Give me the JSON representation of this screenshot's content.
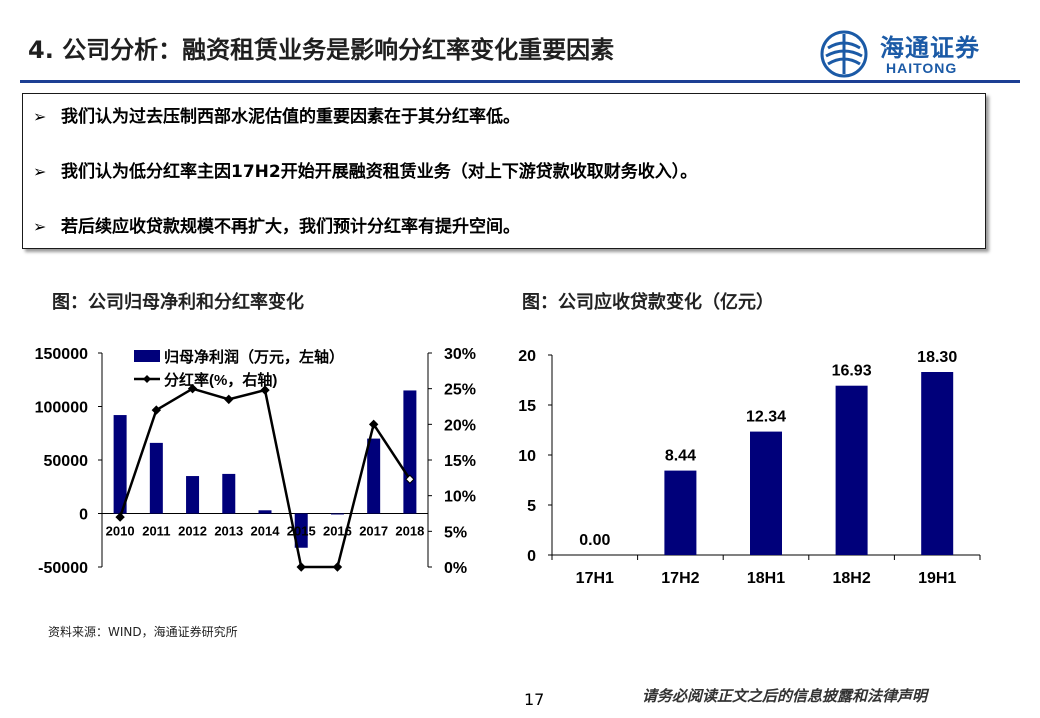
{
  "header": {
    "title": "4. 公司分析：融资租赁业务是影响分红率变化重要因素",
    "logo_cn": "海通证券",
    "logo_en": "HAITONG"
  },
  "bullets": [
    "我们认为过去压制西部水泥估值的重要因素在于其分红率低。",
    "我们认为低分红率主因17H2开始开展融资租赁业务（对上下游贷款收取财务收入）。",
    "若后续应收贷款规模不再扩大，我们预计分红率有提升空间。"
  ],
  "bullet_marker": "➢",
  "chart_left_title": "图：公司归母净利和分红率变化",
  "chart_right_title": "图：公司应收贷款变化（亿元）",
  "source": "资料来源：WIND，海通证券研究所",
  "page_number": "17",
  "disclaimer": "请务必阅读正文之后的信息披露和法律声明",
  "colors": {
    "bar": "#00007a",
    "accent": "#1c3f94",
    "line": "#000000"
  },
  "chart_data": [
    {
      "type": "bar+line",
      "categories": [
        "2010",
        "2011",
        "2012",
        "2013",
        "2014",
        "2015",
        "2016",
        "2017",
        "2018"
      ],
      "series": [
        {
          "name": "归母净利润（万元，左轴）",
          "type": "bar",
          "axis": "left",
          "values": [
            92000,
            66000,
            35000,
            37000,
            3000,
            -32000,
            0,
            70000,
            115000
          ]
        },
        {
          "name": "分红率(%，右轴)",
          "type": "line",
          "axis": "right",
          "values": [
            7,
            22,
            25,
            23.5,
            24.8,
            0,
            0,
            20,
            12.3
          ]
        }
      ],
      "y_left": {
        "min": -50000,
        "max": 150000,
        "ticks": [
          "-50000",
          "0",
          "50000",
          "100000",
          "150000"
        ],
        "tick_values": [
          -50000,
          0,
          50000,
          100000,
          150000
        ]
      },
      "y_right": {
        "min": 0,
        "max": 30,
        "ticks": [
          "0%",
          "5%",
          "10%",
          "15%",
          "20%",
          "25%",
          "30%"
        ],
        "tick_values": [
          0,
          5,
          10,
          15,
          20,
          25,
          30
        ]
      },
      "legend_placement": "top-left",
      "grid": false
    },
    {
      "type": "bar",
      "categories": [
        "17H1",
        "17H2",
        "18H1",
        "18H2",
        "19H1"
      ],
      "values": [
        0.0,
        8.44,
        12.34,
        16.93,
        18.3
      ],
      "value_labels": [
        "0.00",
        "8.44",
        "12.34",
        "16.93",
        "18.30"
      ],
      "y": {
        "min": 0,
        "max": 20,
        "ticks": [
          "0",
          "5",
          "10",
          "15",
          "20"
        ],
        "tick_values": [
          0,
          5,
          10,
          15,
          20
        ]
      },
      "grid": false
    }
  ]
}
